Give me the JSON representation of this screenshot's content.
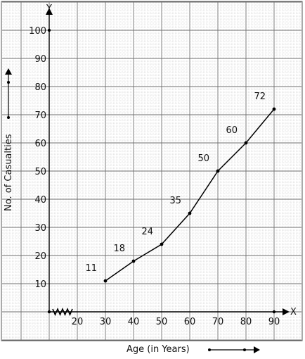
{
  "chart_data": {
    "type": "line",
    "title": "",
    "xlabel": "Age (in Years)",
    "ylabel": "No. of Casualties",
    "x_axis_letter": "X",
    "y_axis_letter": "Y",
    "x": [
      30,
      40,
      50,
      60,
      70,
      80,
      90
    ],
    "y": [
      11,
      18,
      24,
      35,
      50,
      60,
      72
    ],
    "data_labels": [
      "11",
      "18",
      "24",
      "35",
      "50",
      "60",
      "72"
    ],
    "x_ticks": [
      "20",
      "30",
      "40",
      "50",
      "60",
      "70",
      "80",
      "90"
    ],
    "x_tick_values": [
      20,
      30,
      40,
      50,
      60,
      70,
      80,
      90
    ],
    "y_ticks": [
      "10",
      "20",
      "30",
      "40",
      "50",
      "60",
      "70",
      "80",
      "90",
      "100"
    ],
    "y_tick_values": [
      10,
      20,
      30,
      40,
      50,
      60,
      70,
      80,
      90,
      100
    ],
    "xlim": [
      10,
      90
    ],
    "ylim": [
      0,
      100
    ],
    "grid": true,
    "x_axis_break": true,
    "colors": {
      "line": "#000000",
      "grid_minor": "#c9c9c9",
      "grid_major": "#6e6e6e"
    }
  }
}
